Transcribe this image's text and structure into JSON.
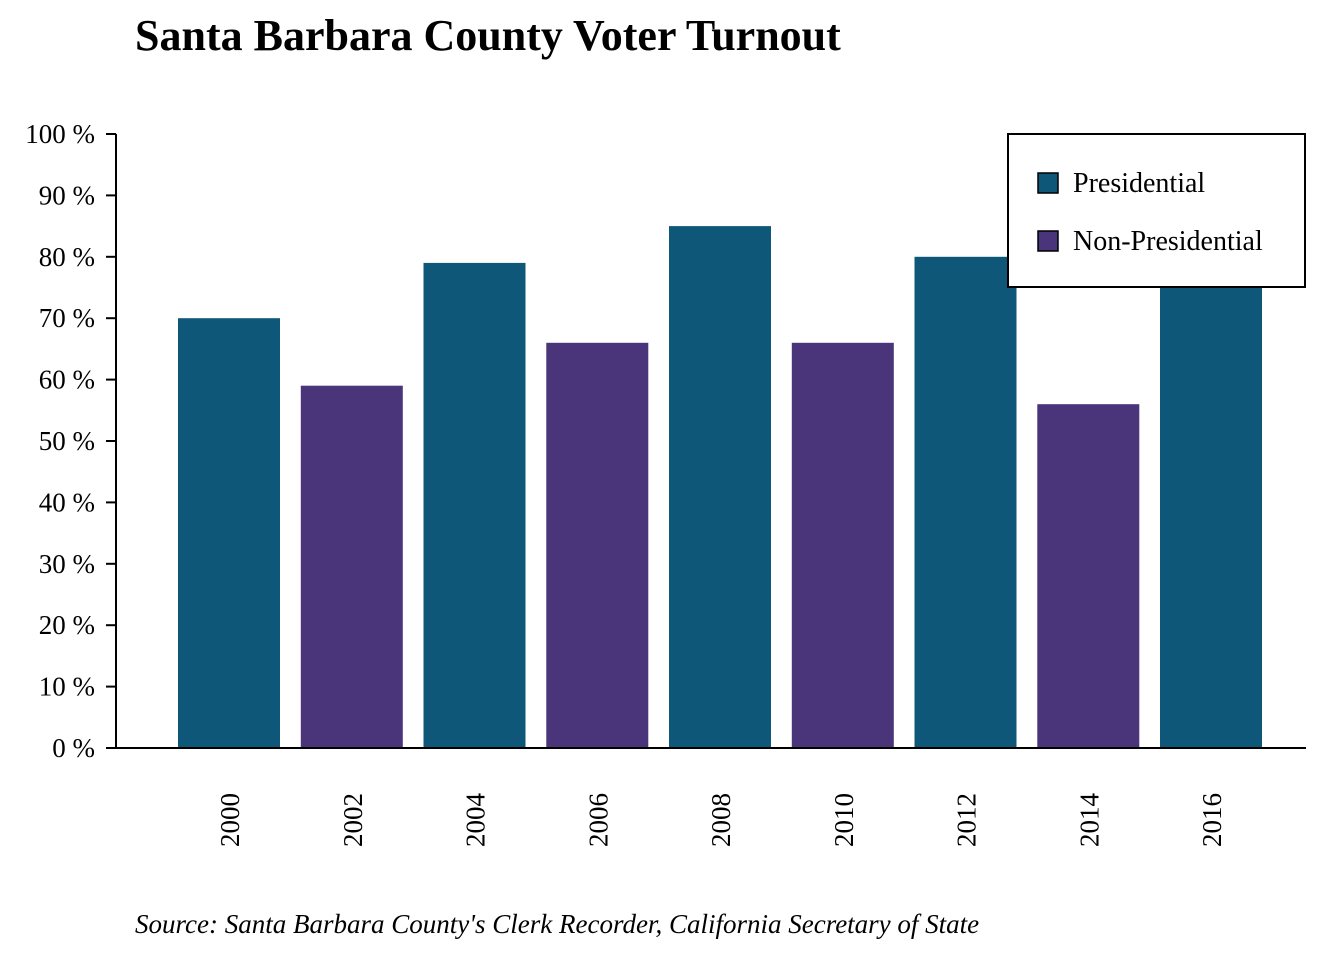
{
  "chart_data": {
    "type": "bar",
    "title": "Santa Barbara County Voter Turnout",
    "source": "Source: Santa Barbara County's Clerk Recorder, California Secretary of State",
    "categories": [
      "2000",
      "2002",
      "2004",
      "2006",
      "2008",
      "2010",
      "2012",
      "2014",
      "2016"
    ],
    "values": [
      70,
      59,
      79,
      66,
      85,
      66,
      80,
      56,
      76
    ],
    "groups": [
      "Presidential",
      "Non-Presidential",
      "Presidential",
      "Non-Presidential",
      "Presidential",
      "Non-Presidential",
      "Presidential",
      "Non-Presidential",
      "Presidential"
    ],
    "series": [
      {
        "name": "Presidential",
        "color": "#0e5778"
      },
      {
        "name": "Non-Presidential",
        "color": "#4a347a"
      }
    ],
    "yticks": [
      "0 %",
      "10 %",
      "20 %",
      "30 %",
      "40 %",
      "50 %",
      "60 %",
      "70 %",
      "80 %",
      "90 %",
      "100 %"
    ],
    "ylim": [
      0,
      100
    ],
    "xlabel": "",
    "ylabel": "",
    "grid": false,
    "legend_position": "top-right",
    "x_tick_rotation": "vertical"
  }
}
